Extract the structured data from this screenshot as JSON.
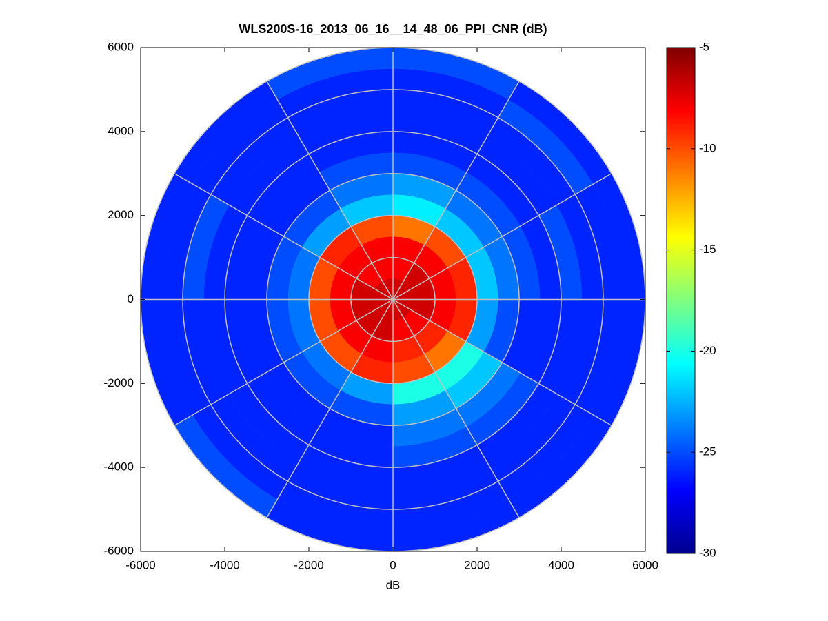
{
  "chart_data": {
    "type": "polar-heatmap",
    "title": "WLS200S-16_2013_06_16__14_48_06_PPI_CNR (dB)",
    "xlabel": "dB",
    "xlim": [
      -6000,
      6000
    ],
    "ylim": [
      -6000,
      6000
    ],
    "xticks": [
      -6000,
      -4000,
      -2000,
      0,
      2000,
      4000,
      6000
    ],
    "yticks": [
      -6000,
      -4000,
      -2000,
      0,
      2000,
      4000,
      6000
    ],
    "colormap": "jet",
    "clim": [
      -30,
      -5
    ],
    "cticks": [
      -30,
      -25,
      -20,
      -15,
      -10,
      -5
    ],
    "grid": true,
    "rgrid": [
      1000,
      2000,
      3000,
      4000,
      5000,
      6000
    ],
    "thetagrid": [
      0,
      30,
      60,
      90,
      120,
      150,
      180,
      210,
      240,
      270,
      300,
      330
    ],
    "range_edges": [
      0,
      500,
      1000,
      1500,
      2000,
      2500,
      3000,
      3500,
      4000,
      4500,
      5000,
      5500,
      6000
    ],
    "azimuth_edges": [
      0,
      30,
      60,
      90,
      120,
      150,
      180,
      210,
      240,
      270,
      300,
      330,
      360
    ],
    "values": [
      [
        -7,
        -7,
        -7,
        -7,
        -7,
        -7,
        -7,
        -7,
        -7,
        -7,
        -7,
        -7
      ],
      [
        -8,
        -7,
        -7,
        -7,
        -8,
        -8,
        -7,
        -7,
        -7,
        -7,
        -8,
        -8
      ],
      [
        -8,
        -8,
        -8,
        -8,
        -9,
        -9,
        -8,
        -8,
        -8,
        -8,
        -8,
        -8
      ],
      [
        -11,
        -10,
        -9,
        -9,
        -11,
        -10,
        -9,
        -10,
        -10,
        -10,
        -9,
        -10
      ],
      [
        -21,
        -22,
        -22,
        -23,
        -20,
        -20,
        -23,
        -24,
        -24,
        -24,
        -23,
        -22
      ],
      [
        -23,
        -24,
        -24,
        -25,
        -22,
        -23,
        -25,
        -25,
        -25,
        -25,
        -25,
        -24
      ],
      [
        -25,
        -25,
        -25,
        -26,
        -24,
        -24,
        -26,
        -26,
        -26,
        -26,
        -26,
        -25
      ],
      [
        -26,
        -26,
        -26,
        -26,
        -25,
        -25,
        -26,
        -26,
        -26,
        -26,
        -26,
        -26
      ],
      [
        -26,
        -26,
        -25,
        -26,
        -26,
        -26,
        -26,
        -26,
        -26,
        -26,
        -26,
        -26
      ],
      [
        -26,
        -26,
        -26,
        -26,
        -26,
        -26,
        -26,
        -26,
        -26,
        -25,
        -26,
        -26
      ],
      [
        -26,
        -25,
        -26,
        -26,
        -26,
        -26,
        -26,
        -26,
        -26,
        -26,
        -26,
        -26
      ],
      [
        -25,
        -26,
        -26,
        -26,
        -26,
        -26,
        -26,
        -25,
        -26,
        -26,
        -26,
        -25
      ]
    ]
  }
}
